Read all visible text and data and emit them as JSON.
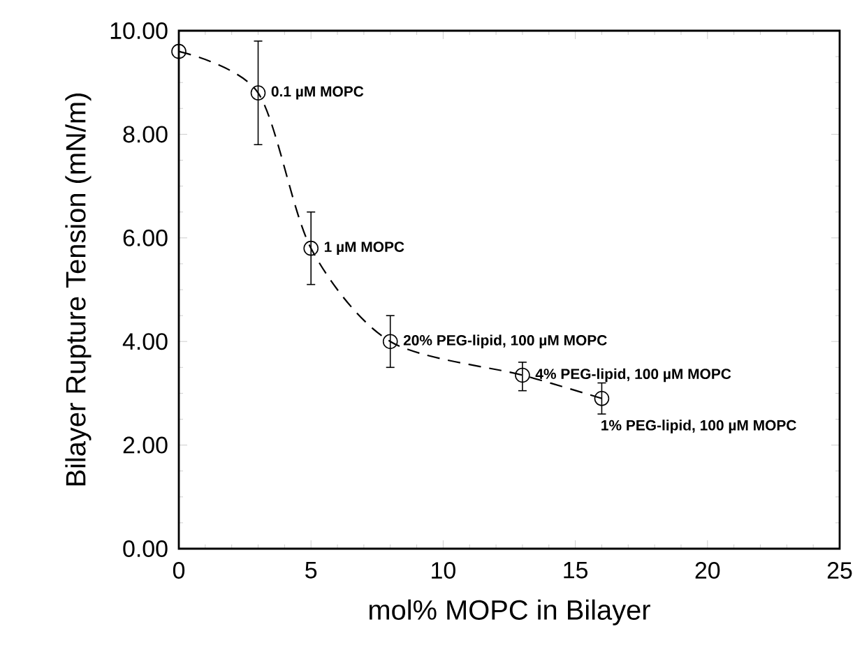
{
  "chart_data": {
    "type": "line",
    "xlabel": "mol% MOPC in Bilayer",
    "ylabel": "Bilayer Rupture Tension (mN/m)",
    "x": [
      0,
      3,
      5,
      8,
      13,
      16
    ],
    "series": [
      {
        "color": "#000000",
        "values": [
          9.6,
          8.8,
          5.8,
          4.0,
          3.35,
          2.9
        ],
        "errors": [
          null,
          [
            7.8,
            9.8
          ],
          [
            5.1,
            6.5
          ],
          [
            3.5,
            4.5
          ],
          [
            3.05,
            3.6
          ],
          [
            2.6,
            3.2
          ]
        ]
      }
    ],
    "marker": "circle",
    "line_style": "dashed",
    "xlim": [
      0,
      25
    ],
    "xticks": [
      0,
      5,
      10,
      15,
      20,
      25
    ],
    "ylim": [
      0,
      10
    ],
    "yticks": [
      {
        "value": 0,
        "label": "0.00"
      },
      {
        "value": 2,
        "label": "2.00"
      },
      {
        "value": 4,
        "label": "4.00"
      },
      {
        "value": 6,
        "label": "6.00"
      },
      {
        "value": 8,
        "label": "8.00"
      },
      {
        "value": 10,
        "label": "10.00"
      }
    ],
    "annotations": [
      {
        "text": "0.1 µM MOPC",
        "x": 3,
        "y": 8.8
      },
      {
        "text": "1 µM MOPC",
        "x": 5,
        "y": 5.8
      },
      {
        "text": "20% PEG-lipid, 100 µM MOPC",
        "x": 8,
        "y": 4.0
      },
      {
        "text": "4% PEG-lipid, 100 µM MOPC",
        "x": 13,
        "y": 3.35
      },
      {
        "text": "1% PEG-lipid, 100 µM MOPC",
        "x": 16,
        "y": 2.9
      }
    ]
  }
}
